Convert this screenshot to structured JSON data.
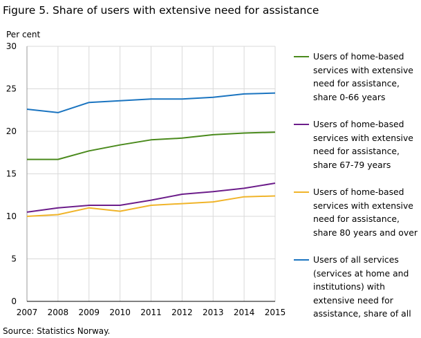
{
  "title": "Figure 5. Share of users with extensive need for assistance",
  "source": "Source: Statistics Norway.",
  "chart_data": {
    "type": "line",
    "title": "Figure 5. Share of users with extensive need for assistance",
    "ylabel": "Per cent",
    "xlabel": "",
    "x": [
      "2007",
      "2008",
      "2009",
      "2010",
      "2011",
      "2012",
      "2013",
      "2014",
      "2015"
    ],
    "ylim": [
      0,
      30
    ],
    "yticks": [
      0,
      5,
      10,
      15,
      20,
      25,
      30
    ],
    "grid": true,
    "legend_position": "right",
    "series": [
      {
        "name": "Users of home-based services with extensive need for assistance, share 0-66 years",
        "color": "#4a8a1c",
        "values": [
          16.7,
          16.7,
          17.7,
          18.4,
          19.0,
          19.2,
          19.6,
          19.8,
          19.9
        ]
      },
      {
        "name": "Users of home-based services with extensive need for assistance, share 67-79 years",
        "color": "#6c1d8a",
        "values": [
          10.5,
          11.0,
          11.3,
          11.3,
          11.9,
          12.6,
          12.9,
          13.3,
          13.9
        ]
      },
      {
        "name": "Users of home-based services with extensive need for assistance, share 80 years and over",
        "color": "#f0b429",
        "values": [
          10.0,
          10.2,
          11.0,
          10.6,
          11.3,
          11.5,
          11.7,
          12.3,
          12.4
        ]
      },
      {
        "name": "Users of all services (services at home and institutions) with extensive need for assistance, share of all",
        "color": "#1a74c0",
        "values": [
          22.6,
          22.2,
          23.4,
          23.6,
          23.8,
          23.8,
          24.0,
          24.4,
          24.5
        ]
      }
    ]
  },
  "legend": [
    {
      "lines": [
        "Users of home-based",
        "services with extensive",
        "need for assistance,",
        "share 0-66 years"
      ],
      "color": "#4a8a1c"
    },
    {
      "lines": [
        "Users of home-based",
        "services with extensive",
        "need for assistance,",
        "share 67-79 years"
      ],
      "color": "#6c1d8a"
    },
    {
      "lines": [
        "Users of home-based",
        "services with extensive",
        "need for assistance,",
        "share 80 years and over"
      ],
      "color": "#f0b429"
    },
    {
      "lines": [
        "Users of all services",
        "(services at home and",
        "institutions) with",
        "extensive need for",
        "assistance, share of all"
      ],
      "color": "#1a74c0"
    }
  ]
}
